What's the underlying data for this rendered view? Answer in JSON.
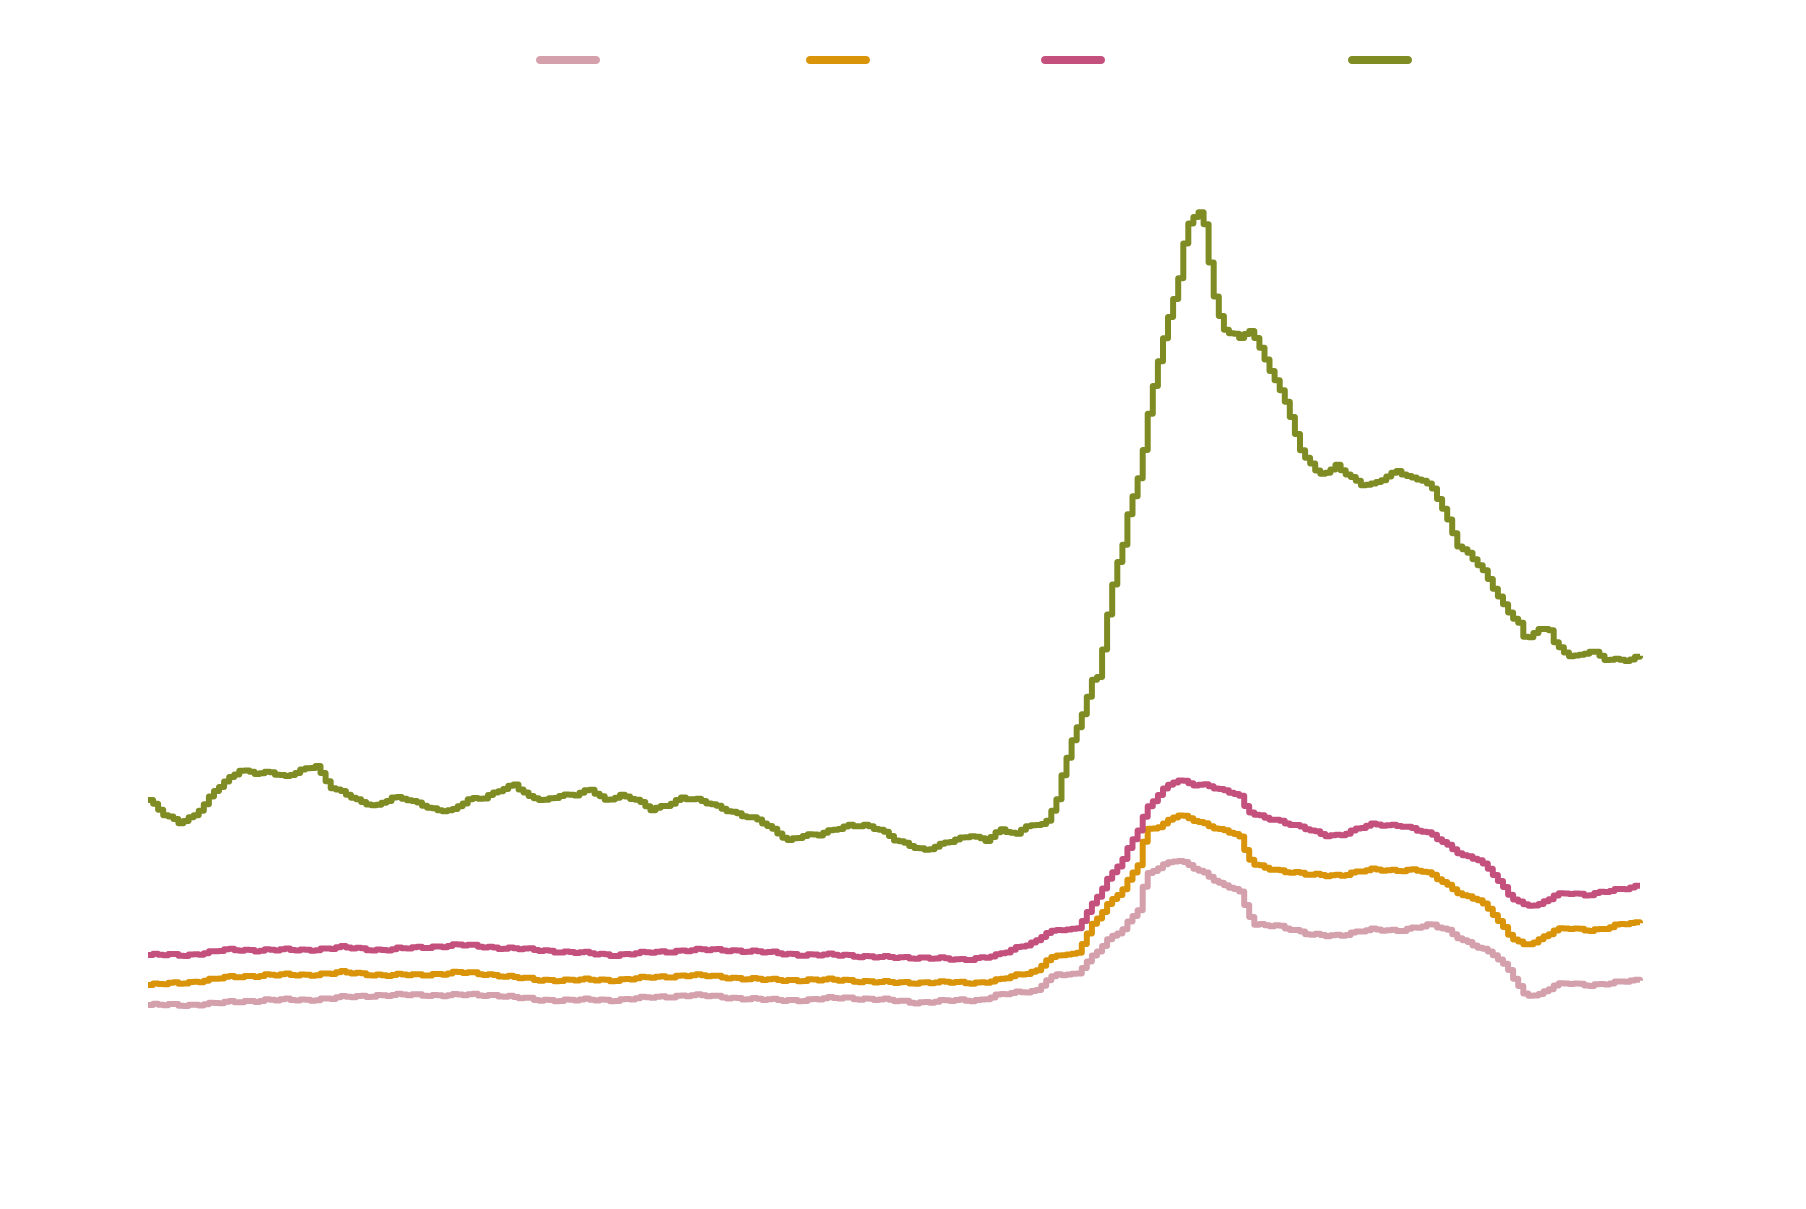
{
  "chart_data": {
    "type": "line",
    "title": "",
    "xlabel": "",
    "ylabel": "",
    "grid": false,
    "legend_placement": "top",
    "x_count": 295,
    "ylim": [
      0,
      320
    ],
    "series": [
      {
        "color": "#D4A0AC",
        "anchors": [
          [
            0,
            2
          ],
          [
            10,
            2
          ],
          [
            20,
            3
          ],
          [
            30,
            4
          ],
          [
            40,
            4
          ],
          [
            50,
            5
          ],
          [
            60,
            6
          ],
          [
            70,
            6
          ],
          [
            80,
            6
          ],
          [
            90,
            6
          ],
          [
            100,
            4
          ],
          [
            110,
            4
          ],
          [
            120,
            4
          ],
          [
            130,
            5
          ],
          [
            140,
            6
          ],
          [
            150,
            5
          ],
          [
            160,
            4
          ],
          [
            170,
            4
          ],
          [
            180,
            5
          ],
          [
            190,
            4
          ],
          [
            200,
            3
          ],
          [
            210,
            4
          ],
          [
            215,
            4
          ],
          [
            220,
            6
          ],
          [
            230,
            8
          ],
          [
            232,
            12
          ],
          [
            235,
            14
          ],
          [
            240,
            14
          ],
          [
            242,
            18
          ],
          [
            248,
            28
          ],
          [
            252,
            32
          ],
          [
            256,
            40
          ],
          [
            258,
            54
          ],
          [
            262,
            58
          ],
          [
            266,
            60
          ],
          [
            270,
            57
          ],
          [
            274,
            54
          ],
          [
            278,
            50
          ],
          [
            282,
            48
          ],
          [
            284,
            40
          ],
          [
            286,
            34
          ],
          [
            292,
            34
          ],
          [
            296,
            32
          ],
          [
            300,
            30
          ],
          [
            304,
            30
          ],
          [
            308,
            30
          ],
          [
            312,
            31
          ],
          [
            316,
            32
          ],
          [
            320,
            32
          ],
          [
            324,
            32
          ],
          [
            328,
            33
          ],
          [
            332,
            34
          ],
          [
            336,
            32
          ],
          [
            340,
            28
          ],
          [
            344,
            25
          ],
          [
            348,
            22
          ],
          [
            352,
            16
          ],
          [
            356,
            6
          ],
          [
            360,
            6
          ],
          [
            364,
            10
          ],
          [
            368,
            11
          ],
          [
            372,
            10
          ],
          [
            376,
            10
          ],
          [
            380,
            11
          ],
          [
            383,
            12
          ],
          [
            386,
            12
          ]
        ]
      },
      {
        "color": "#D99409",
        "anchors": [
          [
            0,
            10
          ],
          [
            10,
            11
          ],
          [
            20,
            13
          ],
          [
            30,
            14
          ],
          [
            40,
            14
          ],
          [
            50,
            15
          ],
          [
            60,
            14
          ],
          [
            70,
            14
          ],
          [
            80,
            15
          ],
          [
            90,
            14
          ],
          [
            100,
            12
          ],
          [
            110,
            12
          ],
          [
            120,
            12
          ],
          [
            130,
            13
          ],
          [
            140,
            14
          ],
          [
            150,
            13
          ],
          [
            160,
            12
          ],
          [
            170,
            12
          ],
          [
            180,
            12
          ],
          [
            190,
            11
          ],
          [
            200,
            11
          ],
          [
            210,
            11
          ],
          [
            215,
            11
          ],
          [
            220,
            12
          ],
          [
            230,
            16
          ],
          [
            232,
            20
          ],
          [
            236,
            22
          ],
          [
            240,
            22
          ],
          [
            244,
            34
          ],
          [
            248,
            42
          ],
          [
            252,
            48
          ],
          [
            256,
            58
          ],
          [
            258,
            72
          ],
          [
            262,
            74
          ],
          [
            266,
            78
          ],
          [
            270,
            76
          ],
          [
            274,
            74
          ],
          [
            278,
            72
          ],
          [
            282,
            70
          ],
          [
            284,
            62
          ],
          [
            286,
            58
          ],
          [
            292,
            56
          ],
          [
            296,
            55
          ],
          [
            300,
            54
          ],
          [
            304,
            54
          ],
          [
            308,
            54
          ],
          [
            312,
            55
          ],
          [
            316,
            56
          ],
          [
            320,
            56
          ],
          [
            324,
            56
          ],
          [
            328,
            56
          ],
          [
            332,
            54
          ],
          [
            336,
            50
          ],
          [
            340,
            46
          ],
          [
            344,
            44
          ],
          [
            348,
            38
          ],
          [
            352,
            30
          ],
          [
            356,
            26
          ],
          [
            360,
            28
          ],
          [
            364,
            32
          ],
          [
            368,
            33
          ],
          [
            372,
            32
          ],
          [
            376,
            32
          ],
          [
            380,
            34
          ],
          [
            383,
            35
          ],
          [
            386,
            35
          ]
        ]
      },
      {
        "color": "#C4507E",
        "anchors": [
          [
            0,
            22
          ],
          [
            10,
            22
          ],
          [
            20,
            24
          ],
          [
            30,
            24
          ],
          [
            40,
            24
          ],
          [
            50,
            25
          ],
          [
            60,
            24
          ],
          [
            70,
            25
          ],
          [
            80,
            26
          ],
          [
            90,
            25
          ],
          [
            100,
            24
          ],
          [
            110,
            23
          ],
          [
            120,
            22
          ],
          [
            130,
            23
          ],
          [
            140,
            24
          ],
          [
            150,
            24
          ],
          [
            160,
            23
          ],
          [
            170,
            22
          ],
          [
            180,
            22
          ],
          [
            190,
            21
          ],
          [
            200,
            21
          ],
          [
            210,
            20
          ],
          [
            215,
            21
          ],
          [
            220,
            22
          ],
          [
            230,
            28
          ],
          [
            232,
            31
          ],
          [
            236,
            32
          ],
          [
            240,
            32
          ],
          [
            244,
            42
          ],
          [
            248,
            52
          ],
          [
            252,
            60
          ],
          [
            256,
            72
          ],
          [
            258,
            80
          ],
          [
            262,
            88
          ],
          [
            266,
            92
          ],
          [
            270,
            90
          ],
          [
            274,
            90
          ],
          [
            278,
            88
          ],
          [
            282,
            86
          ],
          [
            284,
            80
          ],
          [
            286,
            78
          ],
          [
            292,
            76
          ],
          [
            296,
            74
          ],
          [
            300,
            72
          ],
          [
            304,
            70
          ],
          [
            308,
            70
          ],
          [
            312,
            72
          ],
          [
            316,
            74
          ],
          [
            320,
            74
          ],
          [
            324,
            74
          ],
          [
            328,
            72
          ],
          [
            332,
            70
          ],
          [
            336,
            66
          ],
          [
            340,
            62
          ],
          [
            344,
            60
          ],
          [
            348,
            54
          ],
          [
            352,
            46
          ],
          [
            356,
            42
          ],
          [
            360,
            42
          ],
          [
            364,
            46
          ],
          [
            368,
            47
          ],
          [
            372,
            46
          ],
          [
            376,
            47
          ],
          [
            380,
            48
          ],
          [
            383,
            49
          ],
          [
            386,
            50
          ]
        ]
      },
      {
        "color": "#7F8C24",
        "anchors": [
          [
            0,
            84
          ],
          [
            5,
            78
          ],
          [
            10,
            75
          ],
          [
            15,
            78
          ],
          [
            18,
            82
          ],
          [
            22,
            88
          ],
          [
            25,
            91
          ],
          [
            28,
            94
          ],
          [
            30,
            96
          ],
          [
            35,
            95
          ],
          [
            40,
            95
          ],
          [
            45,
            93
          ],
          [
            50,
            96
          ],
          [
            55,
            98
          ],
          [
            58,
            92
          ],
          [
            60,
            89
          ],
          [
            65,
            86
          ],
          [
            70,
            83
          ],
          [
            75,
            82
          ],
          [
            80,
            85
          ],
          [
            85,
            84
          ],
          [
            90,
            82
          ],
          [
            95,
            80
          ],
          [
            100,
            80
          ],
          [
            105,
            84
          ],
          [
            110,
            85
          ],
          [
            115,
            88
          ],
          [
            120,
            90
          ],
          [
            125,
            85
          ],
          [
            130,
            84
          ],
          [
            135,
            86
          ],
          [
            140,
            86
          ],
          [
            145,
            88
          ],
          [
            150,
            84
          ],
          [
            155,
            86
          ],
          [
            160,
            84
          ],
          [
            165,
            80
          ],
          [
            170,
            82
          ],
          [
            175,
            85
          ],
          [
            180,
            84
          ],
          [
            185,
            82
          ],
          [
            190,
            80
          ],
          [
            195,
            78
          ],
          [
            200,
            76
          ],
          [
            205,
            72
          ],
          [
            210,
            68
          ],
          [
            215,
            70
          ],
          [
            220,
            70
          ],
          [
            225,
            72
          ],
          [
            230,
            74
          ],
          [
            235,
            74
          ],
          [
            240,
            72
          ],
          [
            245,
            68
          ],
          [
            250,
            66
          ],
          [
            255,
            64
          ],
          [
            260,
            66
          ],
          [
            265,
            68
          ],
          [
            270,
            70
          ],
          [
            275,
            68
          ],
          [
            280,
            72
          ],
          [
            285,
            70
          ],
          [
            288,
            74
          ],
          [
            292,
            74
          ],
          [
            295,
            76
          ],
          [
            298,
            82
          ],
          [
            300,
            94
          ],
          [
            302,
            102
          ],
          [
            304,
            110
          ],
          [
            306,
            116
          ],
          [
            308,
            124
          ],
          [
            310,
            132
          ],
          [
            312,
            134
          ],
          [
            314,
            150
          ],
          [
            316,
            166
          ],
          [
            318,
            178
          ],
          [
            320,
            186
          ],
          [
            322,
            200
          ],
          [
            324,
            208
          ],
          [
            326,
            218
          ],
          [
            328,
            236
          ],
          [
            330,
            250
          ],
          [
            332,
            262
          ],
          [
            334,
            272
          ],
          [
            336,
            282
          ],
          [
            338,
            290
          ],
          [
            340,
            306
          ],
          [
            342,
            316
          ],
          [
            344,
            318
          ],
          [
            346,
            320
          ],
          [
            348,
            302
          ],
          [
            350,
            286
          ],
          [
            352,
            276
          ],
          [
            354,
            270
          ],
          [
            356,
            272
          ],
          [
            358,
            268
          ],
          [
            362,
            272
          ],
          [
            366,
            262
          ],
          [
            370,
            252
          ],
          [
            374,
            242
          ],
          [
            378,
            224
          ],
          [
            382,
            218
          ],
          [
            384,
            214
          ],
          [
            388,
            216
          ],
          [
            390,
            218
          ],
          [
            394,
            214
          ],
          [
            398,
            210
          ],
          [
            402,
            210
          ],
          [
            406,
            213
          ],
          [
            410,
            216
          ],
          [
            414,
            213
          ],
          [
            418,
            212
          ],
          [
            422,
            208
          ],
          [
            426,
            198
          ],
          [
            430,
            186
          ],
          [
            434,
            182
          ],
          [
            438,
            176
          ],
          [
            442,
            168
          ],
          [
            446,
            160
          ],
          [
            450,
            155
          ],
          [
            452,
            148
          ],
          [
            456,
            152
          ],
          [
            460,
            152
          ],
          [
            462,
            146
          ],
          [
            466,
            142
          ],
          [
            470,
            142
          ],
          [
            474,
            144
          ],
          [
            478,
            140
          ],
          [
            482,
            140
          ],
          [
            486,
            140
          ],
          [
            490,
            142
          ]
        ]
      }
    ]
  }
}
